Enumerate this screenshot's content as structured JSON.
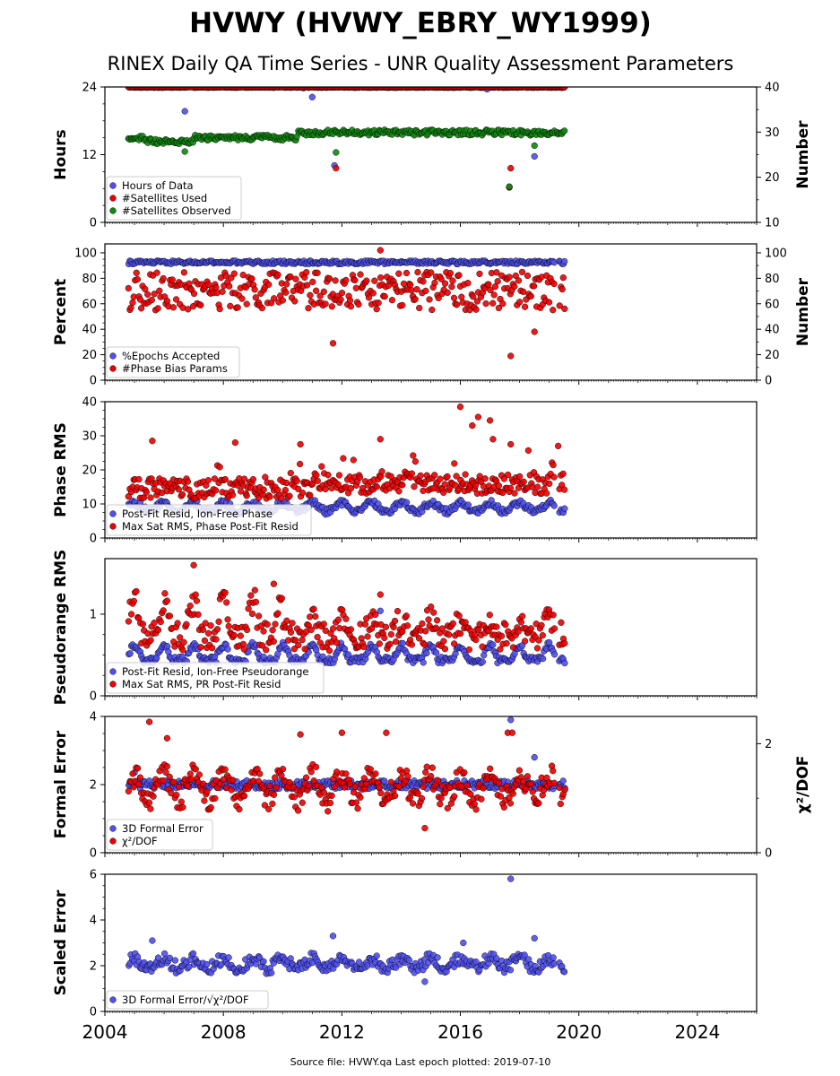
{
  "title": "HVWY (HVWY_EBRY_WY1999)",
  "subtitle": "RINEX Daily QA Time Series - UNR Quality Assessment Parameters",
  "footer": "Source file: HVWY.qa Last epoch plotted: 2019-07-10",
  "colors": {
    "blue": "#5050ee",
    "red": "#ee0000",
    "green": "#118811",
    "edge": "#000000"
  },
  "x_axis": {
    "range": [
      2004,
      2026
    ],
    "ticks": [
      "2004",
      "2008",
      "2012",
      "2016",
      "2020",
      "2024"
    ]
  },
  "chart_data": [
    {
      "type": "scatter",
      "ylabel": "Hours",
      "ylabel_right": "Number",
      "yticks": [
        "0",
        "12",
        "24"
      ],
      "yticks_right": [
        "10",
        "20",
        "30",
        "40"
      ],
      "ylim": [
        0,
        24
      ],
      "ylim_right": [
        10,
        40
      ],
      "x_range": [
        2004.8,
        2019.52
      ],
      "series": [
        {
          "name": "Hours of Data",
          "color": "blue",
          "axis": "left",
          "base": 24,
          "outliers": [
            [
              2006.7,
              19.7
            ],
            [
              2010.7,
              23.8
            ],
            [
              2011.0,
              22.2
            ],
            [
              2011.75,
              10.1
            ],
            [
              2016.9,
              23.6
            ],
            [
              2017.65,
              6.2
            ],
            [
              2018.5,
              11.7
            ]
          ]
        },
        {
          "name": "#Satellites Used",
          "color": "red",
          "axis": "right",
          "base": 40,
          "outliers": [
            [
              2011.8,
              22.0
            ],
            [
              2017.7,
              22.0
            ],
            [
              2017.65,
              17.8
            ]
          ]
        },
        {
          "name": "#Satellites Observed",
          "color": "green",
          "axis": "right",
          "base": 29.2,
          "outliers": [
            [
              2006.7,
              25.7
            ],
            [
              2011.8,
              25.5
            ],
            [
              2017.65,
              17.9
            ],
            [
              2018.5,
              27.0
            ]
          ]
        }
      ]
    },
    {
      "type": "scatter",
      "ylabel": "Percent",
      "ylabel_right": "Number",
      "yticks": [
        "0",
        "20",
        "40",
        "60",
        "80",
        "100"
      ],
      "yticks_right": [
        "0",
        "20",
        "40",
        "60",
        "80",
        "100"
      ],
      "ylim": [
        0,
        107
      ],
      "ylim_right": [
        0,
        107
      ],
      "x_range": [
        2004.8,
        2019.52
      ],
      "series": [
        {
          "name": "%Epochs Accepted",
          "color": "blue",
          "axis": "left",
          "base": 92.5
        },
        {
          "name": "#Phase Bias Params",
          "color": "red",
          "axis": "right",
          "base": 70,
          "outliers": [
            [
              2011.7,
              29
            ],
            [
              2017.7,
              19
            ],
            [
              2018.5,
              38
            ],
            [
              2013.3,
              102
            ]
          ]
        }
      ]
    },
    {
      "type": "scatter",
      "ylabel": "Phase RMS",
      "yticks": [
        "0",
        "10",
        "20",
        "30",
        "40"
      ],
      "ylim": [
        0,
        40
      ],
      "x_range": [
        2004.8,
        2019.52
      ],
      "series": [
        {
          "name": "Post-Fit Resid, Ion-Free Phase",
          "color": "blue",
          "axis": "left",
          "base": 9
        },
        {
          "name": "Max Sat RMS, Phase Post-Fit Resid",
          "color": "red",
          "axis": "left",
          "base": 11.5,
          "outliers": [
            [
              2016.0,
              38.5
            ],
            [
              2016.6,
              35.5
            ],
            [
              2016.4,
              33.0
            ],
            [
              2017.0,
              34.5
            ],
            [
              2017.1,
              29.0
            ],
            [
              2017.7,
              27.5
            ],
            [
              2013.3,
              29.0
            ],
            [
              2019.3,
              27.0
            ],
            [
              2005.6,
              28.5
            ],
            [
              2008.4,
              28.0
            ],
            [
              2010.6,
              27.5
            ]
          ]
        }
      ]
    },
    {
      "type": "scatter",
      "ylabel": "Pseudorange RMS",
      "yticks": [
        "0",
        "1"
      ],
      "ylim": [
        0,
        1.68
      ],
      "x_range": [
        2004.8,
        2019.52
      ],
      "series": [
        {
          "name": "Post-Fit Resid, Ion-Free Pseudorange",
          "color": "blue",
          "axis": "left",
          "base": 0.4,
          "outliers": [
            [
              2013.3,
              1.04
            ]
          ]
        },
        {
          "name": "Max Sat RMS, PR Post-Fit Resid",
          "color": "red",
          "axis": "left",
          "base": 0.6,
          "outliers": [
            [
              2007.0,
              1.6
            ],
            [
              2009.7,
              1.37
            ],
            [
              2013.3,
              1.24
            ]
          ]
        }
      ]
    },
    {
      "type": "scatter",
      "ylabel": "Formal Error",
      "ylabel_right": "χ²/DOF",
      "yticks": [
        "0",
        "2",
        "4"
      ],
      "yticks_right": [
        "0",
        "2"
      ],
      "ylim": [
        0,
        4
      ],
      "ylim_right": [
        0,
        2.5
      ],
      "x_range": [
        2004.8,
        2019.52
      ],
      "series": [
        {
          "name": "3D Formal Error",
          "color": "blue",
          "axis": "left",
          "base": 2.0,
          "outliers": [
            [
              2017.7,
              3.9
            ],
            [
              2018.5,
              2.8
            ],
            [
              2005.0,
              2.35
            ]
          ]
        },
        {
          "name": "χ²/DOF",
          "color": "red",
          "axis": "right",
          "base": 1.2,
          "outliers": [
            [
              2005.5,
              2.4
            ],
            [
              2006.1,
              2.1
            ],
            [
              2017.6,
              2.2
            ],
            [
              2017.75,
              2.2
            ],
            [
              2010.6,
              2.17
            ],
            [
              2014.8,
              0.45
            ],
            [
              2012.0,
              2.2
            ],
            [
              2013.5,
              2.2
            ]
          ]
        }
      ]
    },
    {
      "type": "scatter",
      "ylabel": "Scaled Error",
      "yticks": [
        "0",
        "2",
        "4",
        "6"
      ],
      "ylim": [
        0,
        6
      ],
      "x_range": [
        2004.8,
        2019.52
      ],
      "series": [
        {
          "name": "3D Formal Error/√χ²/DOF",
          "color": "blue",
          "axis": "left",
          "base": 2.1,
          "outliers": [
            [
              2017.7,
              5.8
            ],
            [
              2018.5,
              3.2
            ],
            [
              2011.7,
              3.3
            ],
            [
              2005.6,
              3.1
            ],
            [
              2016.1,
              3.0
            ],
            [
              2014.8,
              1.3
            ]
          ]
        }
      ]
    }
  ]
}
